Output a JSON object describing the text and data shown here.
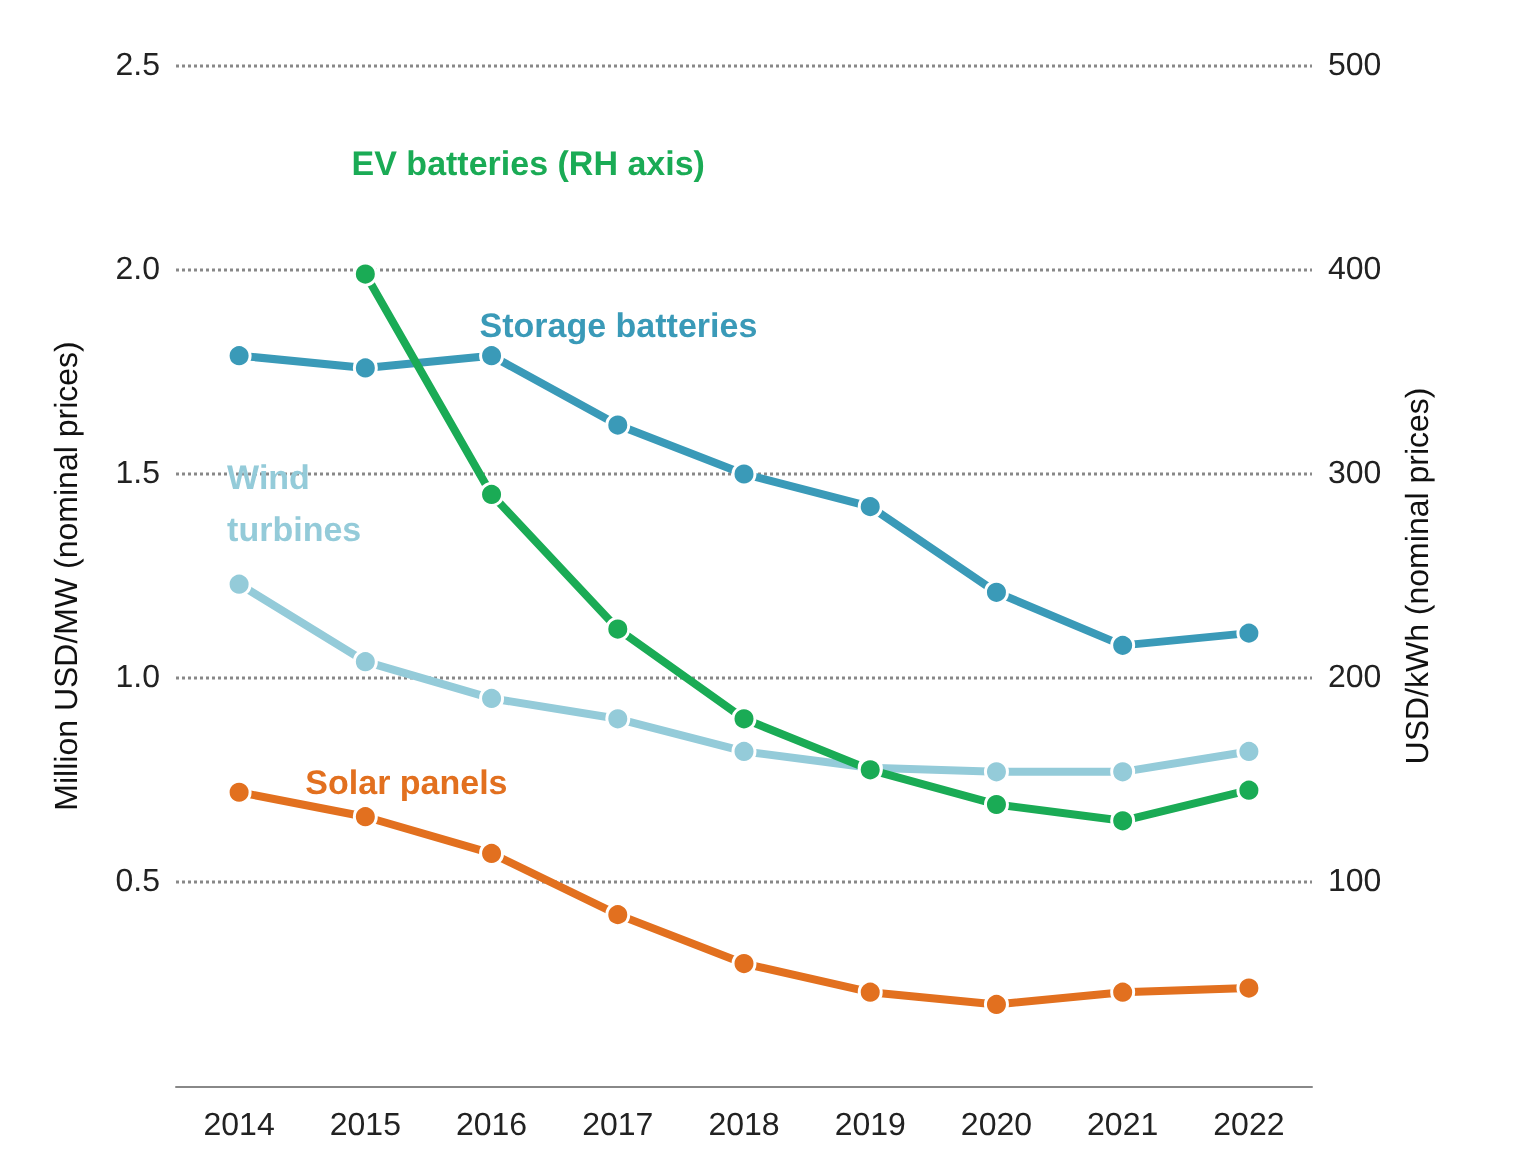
{
  "chart_data": {
    "type": "line",
    "ylabel": "Million USD/MW (nominal prices)",
    "y2label": "USD/kWh (nominal prices)",
    "categories": [
      "2014",
      "2015",
      "2016",
      "2017",
      "2018",
      "2019",
      "2020",
      "2021",
      "2022"
    ],
    "series": [
      {
        "name": "Storage batteries",
        "color": "#3a9ab8",
        "values": [
          1.79,
          1.76,
          1.79,
          1.62,
          1.5,
          1.42,
          1.21,
          1.08,
          1.11
        ]
      },
      {
        "name": "Wind turbines",
        "color": "#94cbd9",
        "values": [
          1.23,
          1.04,
          0.95,
          0.9,
          0.82,
          0.78,
          0.77,
          0.77,
          0.82
        ]
      },
      {
        "name": "Solar panels",
        "color": "#e2701f",
        "values": [
          0.72,
          0.66,
          0.57,
          0.42,
          0.3,
          0.23,
          0.2,
          0.23,
          0.24
        ]
      },
      {
        "name": "EV batteries (RH axis)",
        "color": "#1aab55",
        "axis": "y2",
        "values": [
          null,
          398,
          290,
          224,
          180,
          155,
          138,
          130,
          145
        ]
      }
    ],
    "ylim": [
      0,
      2.5
    ],
    "yticks": [
      0.5,
      {
        "value": 1,
        "label": "1.0"
      },
      1.5,
      {
        "value": 2,
        "label": "2.0"
      },
      2.5
    ],
    "y2lim": [
      0,
      500
    ],
    "y2ticks": [
      100,
      200,
      300,
      400,
      500
    ],
    "grid": "y",
    "legend": false,
    "marker": "circle",
    "line_style": "solid"
  }
}
